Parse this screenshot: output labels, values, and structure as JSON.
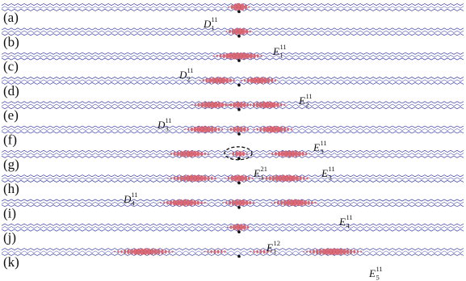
{
  "colors": {
    "lattice": "#3b3fa8",
    "density": "#d9606d",
    "density_edge": "#b4424f",
    "defect_site": "#111111",
    "outline": "#111111"
  },
  "panels": [
    {
      "label": "(a)",
      "blobs": [
        {
          "center": 0.0,
          "half_width": 0.045,
          "amp": 1.0
        }
      ],
      "state": {
        "main": "D",
        "sub": "1",
        "sup": "11"
      }
    },
    {
      "label": "(b)",
      "blobs": [
        {
          "center": 0.0,
          "half_width": 0.055,
          "amp": 0.9
        }
      ],
      "state": {
        "main": "E",
        "sub": "1",
        "sup": "11"
      }
    },
    {
      "label": "(c)",
      "blobs": [
        {
          "center": 0.0,
          "half_width": 0.11,
          "amp": 0.9
        }
      ],
      "state": {
        "main": "D",
        "sub": "2",
        "sup": "11"
      }
    },
    {
      "label": "(d)",
      "blobs": [
        {
          "center": -0.09,
          "half_width": 0.08,
          "amp": 0.85
        },
        {
          "center": 0.09,
          "half_width": 0.08,
          "amp": 0.85
        }
      ],
      "state": {
        "main": "E",
        "sub": "2",
        "sup": "11"
      }
    },
    {
      "label": "(e)",
      "blobs": [
        {
          "center": -0.12,
          "half_width": 0.085,
          "amp": 0.85
        },
        {
          "center": 0.0,
          "half_width": 0.05,
          "amp": 0.8
        },
        {
          "center": 0.12,
          "half_width": 0.085,
          "amp": 0.85
        }
      ],
      "state": {
        "main": "D",
        "sub": "3",
        "sup": "11"
      }
    },
    {
      "label": "(f)",
      "blobs": [
        {
          "center": -0.15,
          "half_width": 0.085,
          "amp": 0.85
        },
        {
          "center": 0.0,
          "half_width": 0.05,
          "amp": 0.75
        },
        {
          "center": 0.15,
          "half_width": 0.085,
          "amp": 0.85
        }
      ],
      "state": {
        "main": "E",
        "sub": "3",
        "sup": "11"
      }
    },
    {
      "label": "(g)",
      "blobs": [
        {
          "center": -0.22,
          "half_width": 0.09,
          "amp": 0.85
        },
        {
          "center": 0.0,
          "half_width": 0.04,
          "amp": 0.7
        },
        {
          "center": 0.22,
          "half_width": 0.09,
          "amp": 0.85
        }
      ],
      "state": {
        "main": "E",
        "sub": "3",
        "sup": "11"
      },
      "extra_state": {
        "main": "E",
        "sub": "1",
        "sup": "21"
      },
      "highlight": true
    },
    {
      "label": "(h)",
      "blobs": [
        {
          "center": -0.2,
          "half_width": 0.11,
          "amp": 0.85
        },
        {
          "center": 0.0,
          "half_width": 0.06,
          "amp": 0.85
        },
        {
          "center": 0.2,
          "half_width": 0.11,
          "amp": 0.85
        }
      ],
      "state": {
        "main": "D",
        "sub": "4",
        "sup": "11"
      }
    },
    {
      "label": "(i)",
      "blobs": [
        {
          "center": -0.24,
          "half_width": 0.1,
          "amp": 0.85
        },
        {
          "center": 0.0,
          "half_width": 0.07,
          "amp": 0.8
        },
        {
          "center": 0.24,
          "half_width": 0.1,
          "amp": 0.85
        }
      ],
      "state": {
        "main": "E",
        "sub": "4",
        "sup": "11"
      }
    },
    {
      "label": "(j)",
      "blobs": [
        {
          "center": 0.0,
          "half_width": 0.05,
          "amp": 0.85
        }
      ],
      "state": {
        "main": "E",
        "sub": "1",
        "sup": "12"
      }
    },
    {
      "label": "(k)",
      "blobs": [
        {
          "center": -0.41,
          "half_width": 0.13,
          "amp": 0.85
        },
        {
          "center": -0.1,
          "half_width": 0.05,
          "amp": 0.4
        },
        {
          "center": 0.1,
          "half_width": 0.05,
          "amp": 0.4
        },
        {
          "center": 0.41,
          "half_width": 0.13,
          "amp": 0.85
        }
      ],
      "state": {
        "main": "E",
        "sub": "5",
        "sup": "11"
      }
    }
  ]
}
